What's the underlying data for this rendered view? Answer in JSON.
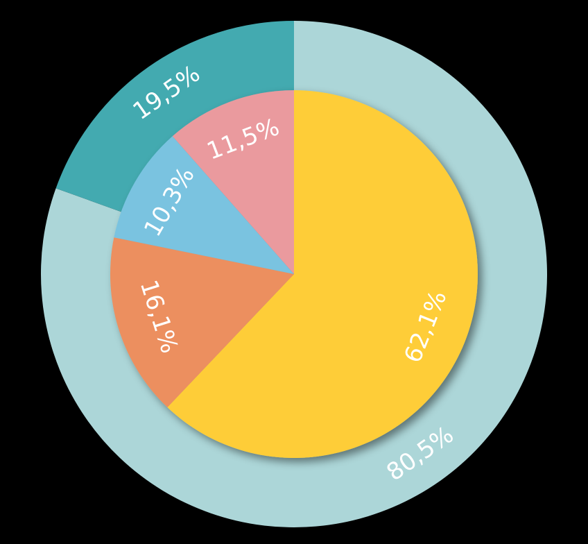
{
  "chart_data": {
    "type": "nested-pie",
    "rings": [
      {
        "values": [
          80.5,
          19.5
        ],
        "value_labels": [
          "80,5%",
          "19,5%"
        ],
        "colors": [
          "#acd6d8",
          "#43aab0"
        ]
      },
      {
        "values": [
          62.1,
          16.1,
          10.3,
          11.5
        ],
        "value_labels": [
          "62,1%",
          "16,1%",
          "10,3%",
          "11,5%"
        ],
        "colors": [
          "#fecd37",
          "#ec8f5f",
          "#7ac3e0",
          "#ea9a9e"
        ]
      }
    ]
  }
}
